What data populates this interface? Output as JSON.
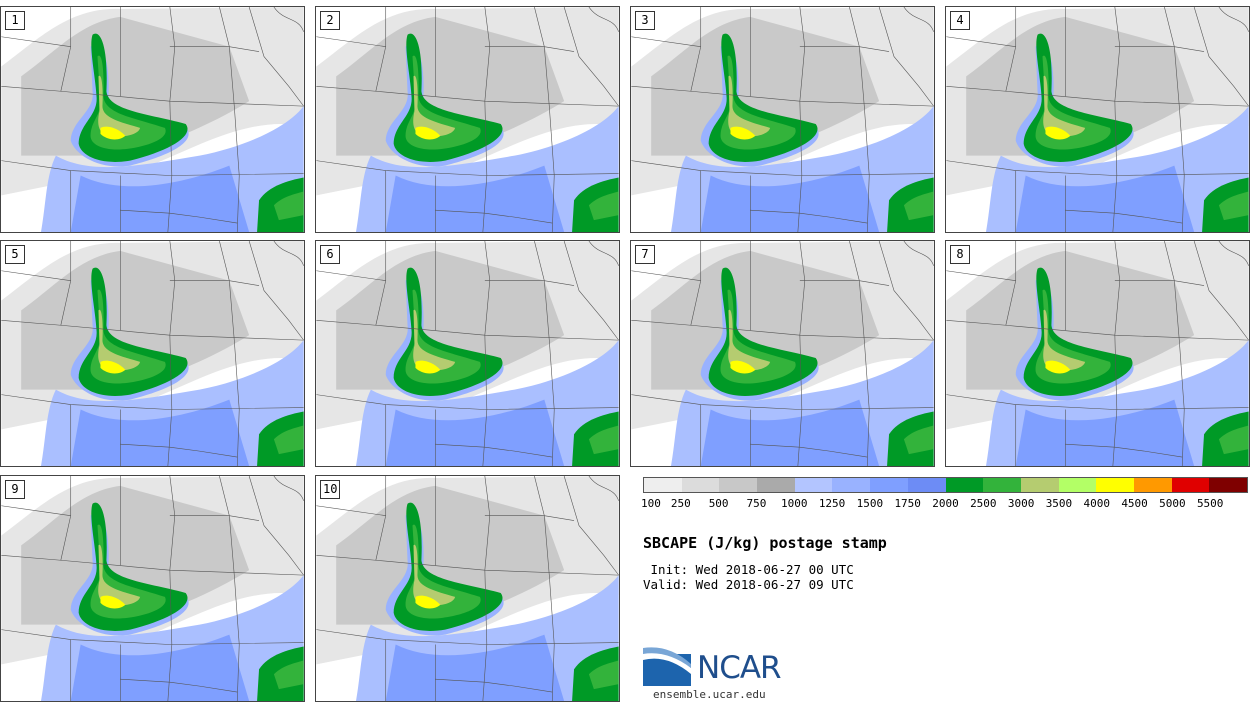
{
  "panels": [
    {
      "label": "1"
    },
    {
      "label": "2"
    },
    {
      "label": "3"
    },
    {
      "label": "4"
    },
    {
      "label": "5"
    },
    {
      "label": "6"
    },
    {
      "label": "7"
    },
    {
      "label": "8"
    },
    {
      "label": "9"
    },
    {
      "label": "10"
    }
  ],
  "colorbar": {
    "colors": [
      "#eeeeee",
      "#dcdcdc",
      "#c8c8c8",
      "#aaaaaa",
      "#b3c5ff",
      "#99b2ff",
      "#7f9fff",
      "#6d8cf5",
      "#009a26",
      "#33b33b",
      "#b5cc70",
      "#b3ff66",
      "#ffff00",
      "#ff9900",
      "#e00000",
      "#7f0000"
    ],
    "tick_labels": [
      "100",
      "250",
      "500",
      "750",
      "1000",
      "1250",
      "1500",
      "1750",
      "2000",
      "2500",
      "3000",
      "3500",
      "4000",
      "4500",
      "5000",
      "5500"
    ]
  },
  "title": "SBCAPE (J/kg) postage stamp",
  "init": " Init: Wed 2018-06-27 00 UTC",
  "valid": "Valid: Wed 2018-06-27 09 UTC",
  "logo": {
    "text": "NCAR"
  },
  "site": "ensemble.ucar.edu"
}
